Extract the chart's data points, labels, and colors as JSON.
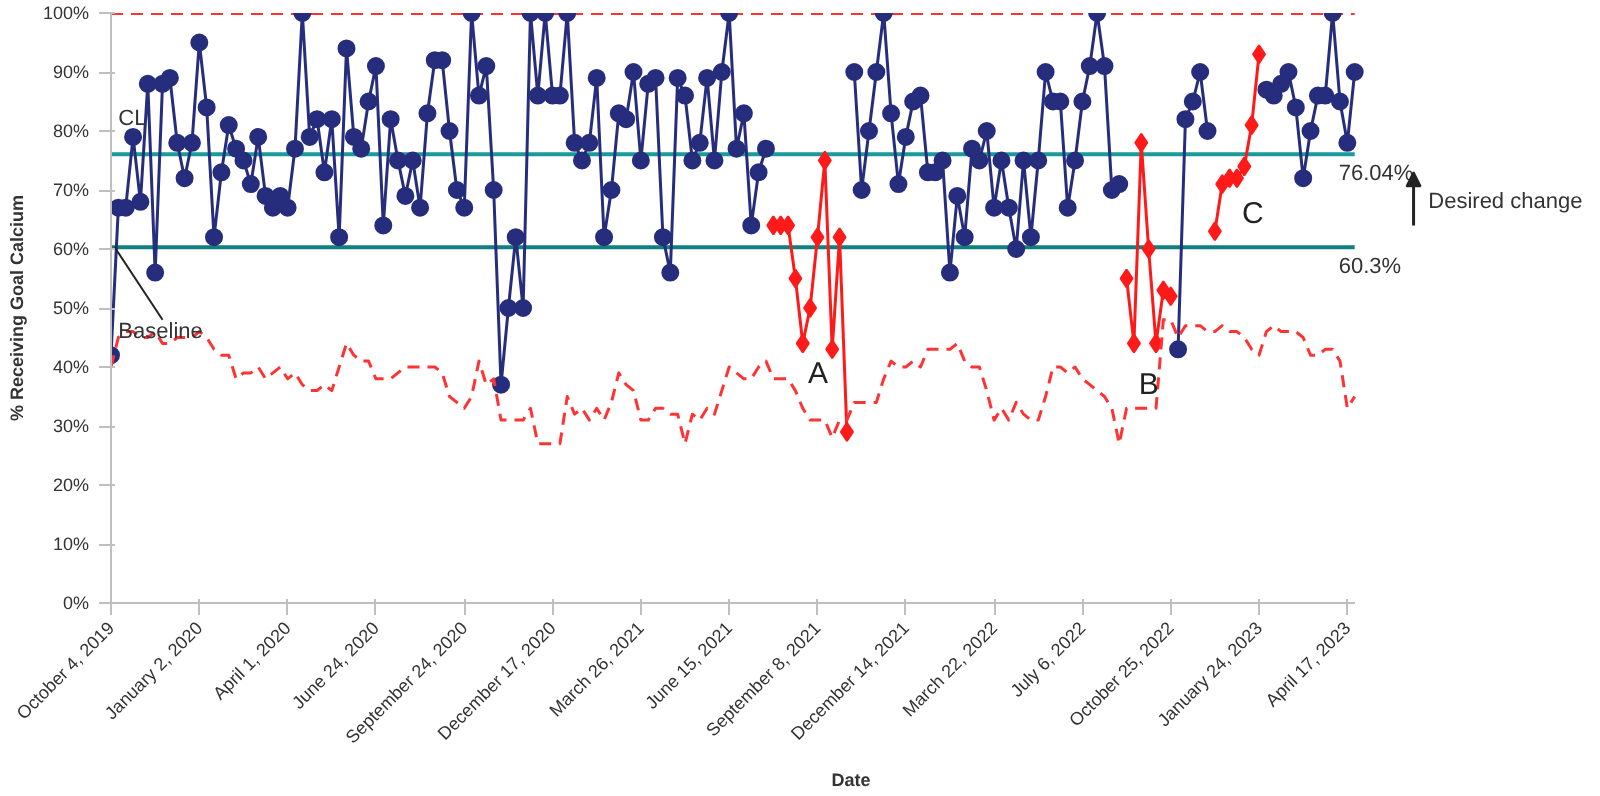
{
  "chart_data": {
    "type": "line",
    "xlabel": "Date",
    "ylabel": "% Receiving Goal Calcium",
    "categories": [
      "October 4, 2019",
      null,
      null,
      null,
      null,
      null,
      null,
      null,
      null,
      null,
      null,
      null,
      "January 2, 2020",
      null,
      null,
      null,
      null,
      null,
      null,
      null,
      null,
      null,
      null,
      null,
      "April 1, 2020",
      null,
      null,
      null,
      null,
      null,
      null,
      null,
      null,
      null,
      null,
      null,
      "June 24, 2020",
      null,
      null,
      null,
      null,
      null,
      null,
      null,
      null,
      null,
      null,
      null,
      "September 24, 2020",
      null,
      null,
      null,
      null,
      null,
      null,
      null,
      null,
      null,
      null,
      null,
      "December 17, 2020",
      null,
      null,
      null,
      null,
      null,
      null,
      null,
      null,
      null,
      null,
      null,
      "March 26, 2021",
      null,
      null,
      null,
      null,
      null,
      null,
      null,
      null,
      null,
      null,
      null,
      "June 15, 2021",
      null,
      null,
      null,
      null,
      null,
      null,
      null,
      null,
      null,
      null,
      null,
      "September 8, 2021",
      null,
      null,
      null,
      null,
      null,
      null,
      null,
      null,
      null,
      null,
      null,
      "December 14, 2021",
      null,
      null,
      null,
      null,
      null,
      null,
      null,
      null,
      null,
      null,
      null,
      "March 22, 2022",
      null,
      null,
      null,
      null,
      null,
      null,
      null,
      null,
      null,
      null,
      null,
      "July 6, 2022",
      null,
      null,
      null,
      null,
      null,
      null,
      null,
      null,
      null,
      null,
      null,
      "October 25, 2022",
      null,
      null,
      null,
      null,
      null,
      null,
      null,
      null,
      null,
      null,
      null,
      "January 24, 2023",
      null,
      null,
      null,
      null,
      null,
      null,
      null,
      null,
      null,
      null,
      null,
      "April 17, 2023",
      null
    ],
    "series": [
      {
        "color": "#262d7d",
        "marker": "circle",
        "values": [
          42,
          67,
          67,
          79,
          68,
          88,
          56,
          88,
          89,
          78,
          72,
          78,
          95,
          84,
          62,
          73,
          81,
          77,
          75,
          71,
          79,
          69,
          67,
          69,
          67,
          77,
          100,
          79,
          82,
          73,
          82,
          62,
          94,
          79,
          77,
          85,
          91,
          64,
          82,
          75,
          69,
          75,
          67,
          83,
          92,
          92,
          80,
          70,
          67,
          100,
          86,
          91,
          70,
          37,
          50,
          62,
          50,
          100,
          86,
          100,
          86,
          86,
          100,
          78,
          75,
          78,
          89,
          62,
          70,
          83,
          82,
          90,
          75,
          88,
          89,
          62,
          56,
          89,
          86,
          75,
          78,
          89,
          75,
          90,
          100,
          77,
          83,
          64,
          73,
          77,
          null,
          null,
          null,
          null,
          null,
          null,
          null,
          null,
          null,
          null,
          null,
          90,
          70,
          80,
          90,
          100,
          83,
          71,
          79,
          85,
          86,
          73,
          73,
          75,
          56,
          69,
          62,
          77,
          75,
          80,
          67,
          75,
          67,
          60,
          75,
          62,
          75,
          90,
          85,
          85,
          67,
          75,
          85,
          91,
          100,
          91,
          70,
          71,
          null,
          null,
          null,
          null,
          null,
          null,
          null,
          43,
          82,
          85,
          90,
          80,
          null,
          null,
          null,
          null,
          null,
          null,
          null,
          87,
          86,
          88,
          90,
          84,
          72,
          80,
          86,
          86,
          100,
          85,
          78,
          90
        ]
      },
      {
        "color": "#ff1a1a",
        "marker": "diamond",
        "values": [
          null,
          null,
          null,
          null,
          null,
          null,
          null,
          null,
          null,
          null,
          null,
          null,
          null,
          null,
          null,
          null,
          null,
          null,
          null,
          null,
          null,
          null,
          null,
          null,
          null,
          null,
          null,
          null,
          null,
          null,
          null,
          null,
          null,
          null,
          null,
          null,
          null,
          null,
          null,
          null,
          null,
          null,
          null,
          null,
          null,
          null,
          null,
          null,
          null,
          null,
          null,
          null,
          null,
          null,
          null,
          null,
          null,
          null,
          null,
          null,
          null,
          null,
          null,
          null,
          null,
          null,
          null,
          null,
          null,
          null,
          null,
          null,
          null,
          null,
          null,
          null,
          null,
          null,
          null,
          null,
          null,
          null,
          null,
          null,
          null,
          null,
          null,
          null,
          null,
          null,
          64,
          64,
          64,
          55,
          44,
          50,
          62,
          75,
          43,
          62,
          29,
          null,
          null,
          null,
          null,
          null,
          null,
          null,
          null,
          null,
          null,
          null,
          null,
          null,
          null,
          null,
          null,
          null,
          null,
          null,
          null,
          null,
          null,
          null,
          null,
          null,
          null,
          null,
          null,
          null,
          null,
          null,
          null,
          null,
          null,
          null,
          null,
          null,
          55,
          44,
          78,
          60,
          44,
          53,
          52,
          null,
          null,
          null,
          null,
          null,
          63,
          71,
          72,
          72,
          74,
          81,
          93,
          null,
          null,
          null,
          null,
          null,
          null,
          null,
          null,
          null,
          null,
          null,
          null,
          null
        ]
      },
      {
        "color": "#ff3333",
        "marker": "none",
        "line_style": "dashed",
        "values": [
          40,
          45,
          46,
          46,
          45,
          45,
          46,
          44,
          44,
          45,
          45,
          45,
          46,
          45,
          43,
          42,
          42,
          38,
          39,
          39,
          40,
          38,
          39,
          40,
          38,
          39,
          37,
          36,
          36,
          37,
          36,
          40,
          44,
          42,
          41,
          41,
          38,
          38,
          38,
          39,
          40,
          40,
          40,
          40,
          40,
          39,
          35,
          34,
          33,
          35,
          41,
          37,
          38,
          31,
          31,
          31,
          31,
          33,
          27,
          27,
          27,
          27,
          35,
          32,
          33,
          31,
          33,
          31,
          34,
          39,
          37,
          36,
          31,
          31,
          33,
          33,
          32,
          32,
          27,
          32,
          31,
          33,
          32,
          36,
          40,
          39,
          38,
          38,
          40,
          41,
          38,
          38,
          38,
          36,
          33,
          31,
          31,
          31,
          28,
          31,
          31,
          34,
          34,
          34,
          34,
          38,
          41,
          40,
          40,
          41,
          40,
          43,
          43,
          43,
          43,
          44,
          41,
          40,
          40,
          36,
          31,
          33,
          31,
          34,
          32,
          31,
          31,
          35,
          40,
          40,
          39,
          40,
          38,
          37,
          36,
          35,
          33,
          27,
          33,
          33,
          33,
          33,
          33,
          48,
          48,
          45,
          47,
          47,
          47,
          46,
          46,
          47,
          46,
          46,
          45,
          43,
          42,
          46,
          47,
          46,
          46,
          46,
          45,
          42,
          42,
          43,
          43,
          41,
          33,
          35
        ]
      }
    ],
    "ylim": [
      0,
      100
    ],
    "yticks": [
      {
        "value": 0,
        "label": "0%"
      },
      {
        "value": 10,
        "label": "10%"
      },
      {
        "value": 20,
        "label": "20%"
      },
      {
        "value": 30,
        "label": "30%"
      },
      {
        "value": 40,
        "label": "40%"
      },
      {
        "value": 50,
        "label": "50%"
      },
      {
        "value": 60,
        "label": "60%"
      },
      {
        "value": 70,
        "label": "70%"
      },
      {
        "value": 80,
        "label": "80%"
      },
      {
        "value": 90,
        "label": "90%"
      },
      {
        "value": 100,
        "label": "100%"
      }
    ],
    "ref_lines": [
      {
        "axis": "y",
        "value": 100,
        "color": "#ff3333",
        "line_style": "dashed"
      },
      {
        "axis": "y",
        "value": 76.04,
        "label": "76.04%",
        "color": "#1a9a9a",
        "line_style": "solid"
      },
      {
        "axis": "y",
        "value": 60.3,
        "label": "60.3%",
        "color": "#0f7f7f",
        "line_style": "solid"
      }
    ],
    "annotations": [
      {
        "text": "CL",
        "y": 82
      },
      {
        "text": "Baseline",
        "y": 46
      },
      "A",
      "B",
      "C",
      "Desired change"
    ],
    "grid": false
  }
}
